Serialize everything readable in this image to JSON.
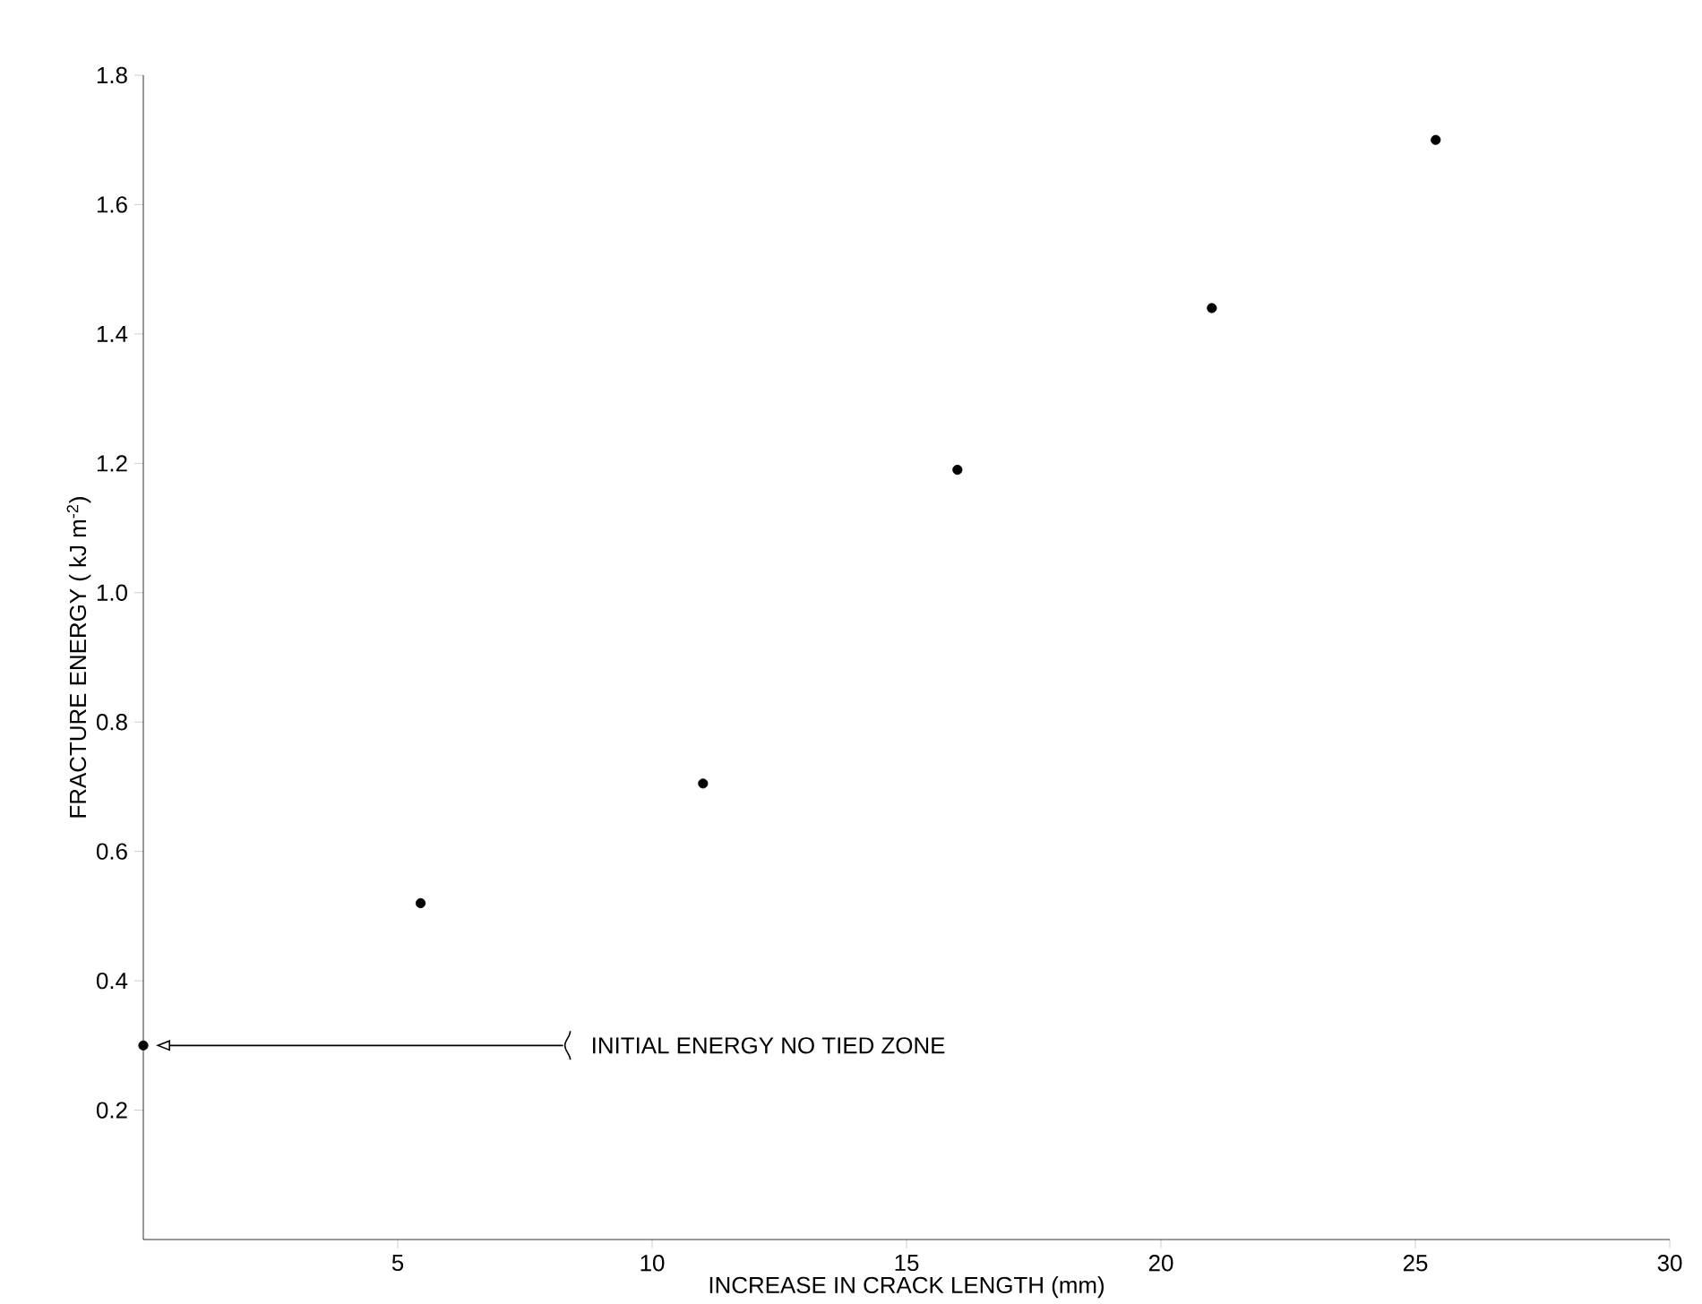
{
  "chart_data": {
    "type": "scatter",
    "xlabel": "INCREASE IN CRACK LENGTH (mm)",
    "ylabel": "FRACTURE ENERGY ( kJ m$^{-2}$)",
    "x": [
      0,
      5.45,
      11,
      16,
      21,
      25.4
    ],
    "series": [
      {
        "color": "#000000",
        "values": [
          0.3,
          0.52,
          0.705,
          1.19,
          1.44,
          1.7
        ]
      }
    ],
    "marker": "circle",
    "xlim": [
      0,
      30
    ],
    "ylim": [
      0,
      1.8
    ],
    "xticks": [
      5,
      10,
      15,
      20,
      25,
      30
    ],
    "yticks": [
      0.2,
      0.4,
      0.6,
      0.8,
      {
        "value": 1.0,
        "label": "1.0"
      },
      1.2,
      1.4,
      1.6,
      1.8
    ],
    "annotations": [
      "INITIAL ENERGY NO TIED ZONE"
    ]
  }
}
